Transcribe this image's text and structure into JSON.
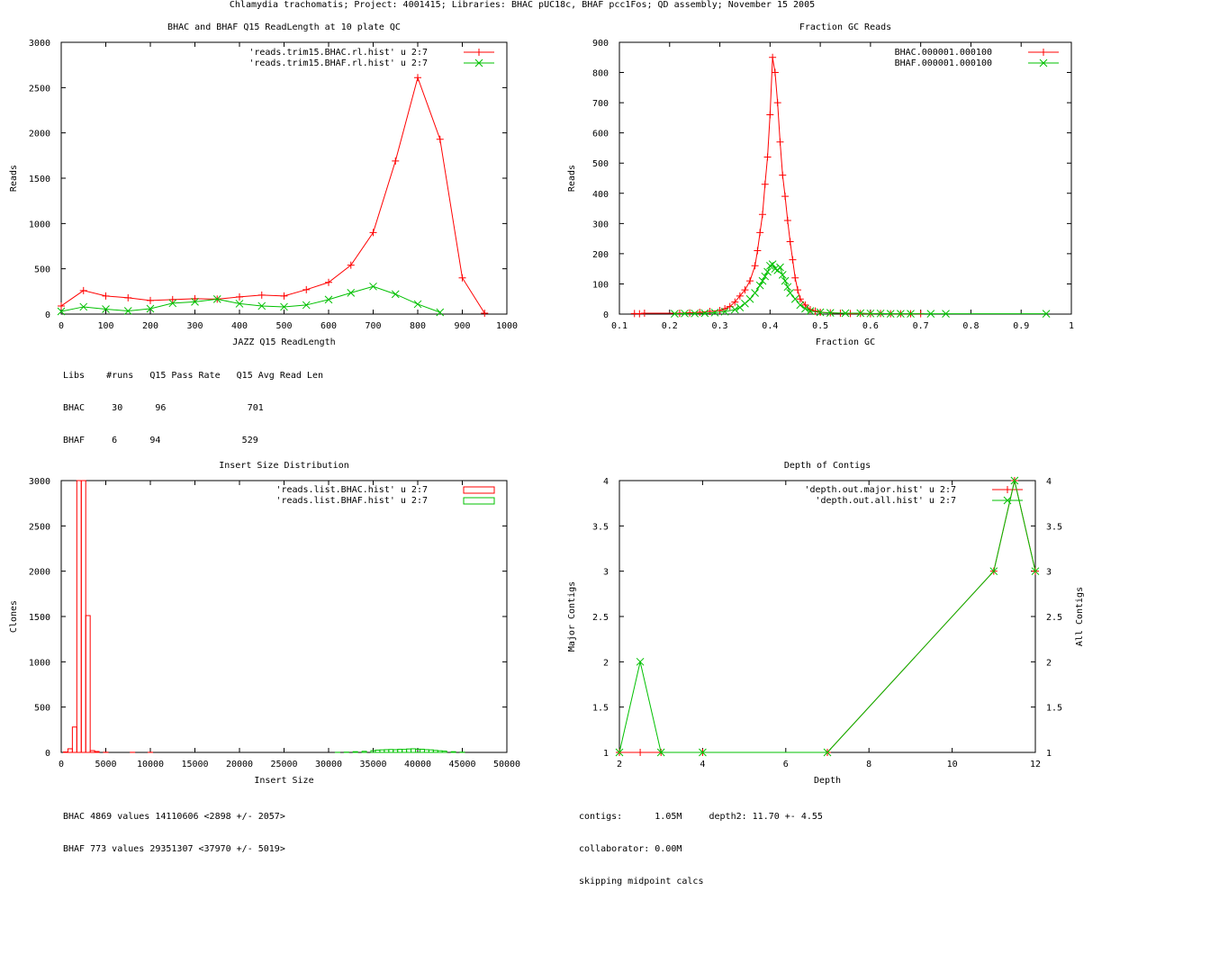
{
  "page_title": "Chlamydia trachomatis; Project: 4001415; Libraries: BHAC pUC18c, BHAF pcc1Fos; QD assembly; November 15 2005",
  "colors": {
    "red": "#ff0000",
    "green": "#00c000",
    "axis": "#000000"
  },
  "read_length_stats": {
    "header": "Libs    #runs   Q15 Pass Rate   Q15 Avg Read Len",
    "rows": [
      "BHAC     30      96               701",
      "BHAF     6      94               529"
    ]
  },
  "insert_stats": {
    "lines": [
      "BHAC 4869 values 14110606 <2898 +/- 2057>",
      "BHAF 773 values 29351307 <37970 +/- 5019>"
    ]
  },
  "depth_stats": {
    "lines": [
      "contigs:      1.05M     depth2: 11.70 +- 4.55",
      "collaborator: 0.00M",
      "skipping midpoint calcs"
    ]
  },
  "chart_data": [
    {
      "id": "readlength",
      "type": "line",
      "title": "BHAC and BHAF Q15 ReadLength at 10 plate QC",
      "xlabel": "JAZZ Q15 ReadLength",
      "ylabel": "Reads",
      "xlim": [
        0,
        1000
      ],
      "ylim": [
        0,
        3000
      ],
      "xticks": [
        0,
        100,
        200,
        300,
        400,
        500,
        600,
        700,
        800,
        900,
        1000
      ],
      "yticks": [
        0,
        500,
        1000,
        1500,
        2000,
        2500,
        3000
      ],
      "legend": "top-right",
      "series": [
        {
          "name": "'reads.trim15.BHAC.rl.hist' u 2:7",
          "color": "#ff0000",
          "marker": "plus",
          "x": [
            0,
            50,
            100,
            150,
            200,
            250,
            300,
            350,
            400,
            450,
            500,
            550,
            600,
            650,
            700,
            750,
            800,
            850,
            900,
            950
          ],
          "y": [
            90,
            260,
            200,
            180,
            150,
            160,
            170,
            165,
            190,
            210,
            200,
            270,
            350,
            540,
            900,
            1690,
            2610,
            1930,
            400,
            10
          ]
        },
        {
          "name": "'reads.trim15.BHAF.rl.hist' u 2:7",
          "color": "#00c000",
          "marker": "cross",
          "x": [
            0,
            50,
            100,
            150,
            200,
            250,
            300,
            350,
            400,
            450,
            500,
            550,
            600,
            650,
            700,
            750,
            800,
            850
          ],
          "y": [
            30,
            80,
            55,
            35,
            60,
            120,
            135,
            165,
            115,
            90,
            80,
            100,
            160,
            235,
            305,
            220,
            110,
            20
          ]
        }
      ]
    },
    {
      "id": "gc",
      "type": "line",
      "title": "Fraction GC Reads",
      "xlabel": "Fraction GC",
      "ylabel": "Reads",
      "xlim": [
        0.1,
        1
      ],
      "ylim": [
        0,
        900
      ],
      "xticks": [
        0.1,
        0.2,
        0.3,
        0.4,
        0.5,
        0.6,
        0.7,
        0.8,
        0.9,
        1
      ],
      "yticks": [
        0,
        100,
        200,
        300,
        400,
        500,
        600,
        700,
        800,
        900
      ],
      "legend": "top-right",
      "series": [
        {
          "name": "BHAC.000001.000100",
          "color": "#ff0000",
          "marker": "plus",
          "x": [
            0.13,
            0.14,
            0.15,
            0.22,
            0.24,
            0.26,
            0.28,
            0.3,
            0.31,
            0.32,
            0.33,
            0.34,
            0.35,
            0.36,
            0.37,
            0.375,
            0.38,
            0.385,
            0.39,
            0.395,
            0.4,
            0.405,
            0.41,
            0.415,
            0.42,
            0.425,
            0.43,
            0.435,
            0.44,
            0.445,
            0.45,
            0.455,
            0.46,
            0.47,
            0.48,
            0.49,
            0.5,
            0.52,
            0.54,
            0.56,
            0.58,
            0.6,
            0.62,
            0.64,
            0.66,
            0.68,
            0.7
          ],
          "y": [
            2,
            1,
            3,
            3,
            4,
            6,
            9,
            12,
            18,
            25,
            40,
            60,
            80,
            110,
            160,
            210,
            270,
            330,
            430,
            520,
            660,
            850,
            800,
            700,
            570,
            460,
            390,
            310,
            240,
            180,
            120,
            80,
            50,
            30,
            15,
            10,
            6,
            4,
            3,
            2,
            2,
            1,
            2,
            1,
            1,
            1,
            1
          ]
        },
        {
          "name": "BHAF.000001.000100",
          "color": "#00c000",
          "marker": "cross",
          "x": [
            0.21,
            0.23,
            0.25,
            0.27,
            0.29,
            0.31,
            0.33,
            0.34,
            0.35,
            0.36,
            0.37,
            0.38,
            0.385,
            0.39,
            0.395,
            0.4,
            0.405,
            0.41,
            0.415,
            0.42,
            0.425,
            0.43,
            0.435,
            0.44,
            0.45,
            0.46,
            0.47,
            0.48,
            0.5,
            0.52,
            0.55,
            0.58,
            0.6,
            0.62,
            0.64,
            0.66,
            0.68,
            0.72,
            0.75,
            0.95
          ],
          "y": [
            1,
            2,
            2,
            3,
            5,
            8,
            15,
            22,
            35,
            50,
            70,
            95,
            110,
            125,
            140,
            160,
            165,
            150,
            145,
            155,
            130,
            110,
            90,
            70,
            50,
            30,
            18,
            10,
            6,
            4,
            3,
            3,
            2,
            2,
            1,
            1,
            1,
            1,
            1,
            1
          ]
        }
      ]
    },
    {
      "id": "insert",
      "type": "bar",
      "title": "Insert Size Distribution",
      "xlabel": "Insert Size",
      "ylabel": "Clones",
      "xlim": [
        0,
        50000
      ],
      "ylim": [
        0,
        3000
      ],
      "xticks": [
        0,
        5000,
        10000,
        15000,
        20000,
        25000,
        30000,
        35000,
        40000,
        45000,
        50000
      ],
      "yticks": [
        0,
        500,
        1000,
        1500,
        2000,
        2500,
        3000
      ],
      "legend": "top-right",
      "series": [
        {
          "name": "'reads.list.BHAC.hist' u 2:7",
          "color": "#ff0000",
          "binwidth": 500,
          "x": [
            500,
            1000,
            1500,
            2000,
            2500,
            3000,
            3500,
            4000,
            5000,
            8000,
            10000
          ],
          "y": [
            5,
            40,
            280,
            3000,
            3000,
            1510,
            20,
            10,
            2,
            1,
            1
          ]
        },
        {
          "name": "'reads.list.BHAF.hist' u 2:7",
          "color": "#00c000",
          "binwidth": 500,
          "x": [
            31000,
            32000,
            33000,
            34000,
            35000,
            35500,
            36000,
            36500,
            37000,
            37500,
            38000,
            38500,
            39000,
            39500,
            40000,
            40500,
            41000,
            41500,
            42000,
            42500,
            43000,
            44000,
            45000
          ],
          "y": [
            1,
            3,
            8,
            12,
            20,
            25,
            28,
            30,
            32,
            30,
            34,
            33,
            38,
            40,
            36,
            35,
            30,
            28,
            22,
            18,
            14,
            8,
            3
          ]
        }
      ]
    },
    {
      "id": "depth",
      "type": "line",
      "title": "Depth of Contigs",
      "xlabel": "Depth",
      "ylabel": "Major Contigs",
      "y2label": "All Contigs",
      "xlim": [
        2,
        12
      ],
      "ylim": [
        1,
        4
      ],
      "xticks": [
        2,
        4,
        6,
        8,
        10,
        12
      ],
      "xticklabels": [
        "2",
        "4",
        "6",
        "8",
        "10",
        "12"
      ],
      "yticks": [
        1,
        1.5,
        2,
        2.5,
        3,
        3.5,
        4
      ],
      "legend": "top-right",
      "series": [
        {
          "name": "'depth.out.major.hist' u 2:7",
          "color": "#ff0000",
          "marker": "plus",
          "x": [
            2,
            2.5,
            3,
            4,
            7,
            11,
            11.5,
            12
          ],
          "y": [
            1,
            1,
            1,
            1,
            1,
            3,
            4,
            3
          ]
        },
        {
          "name": "'depth.out.all.hist' u 2:7",
          "color": "#00c000",
          "marker": "cross",
          "x": [
            2,
            2.5,
            3,
            4,
            7,
            11,
            11.5,
            12
          ],
          "y": [
            1,
            2,
            1,
            1,
            1,
            3,
            4,
            3
          ]
        }
      ]
    }
  ]
}
